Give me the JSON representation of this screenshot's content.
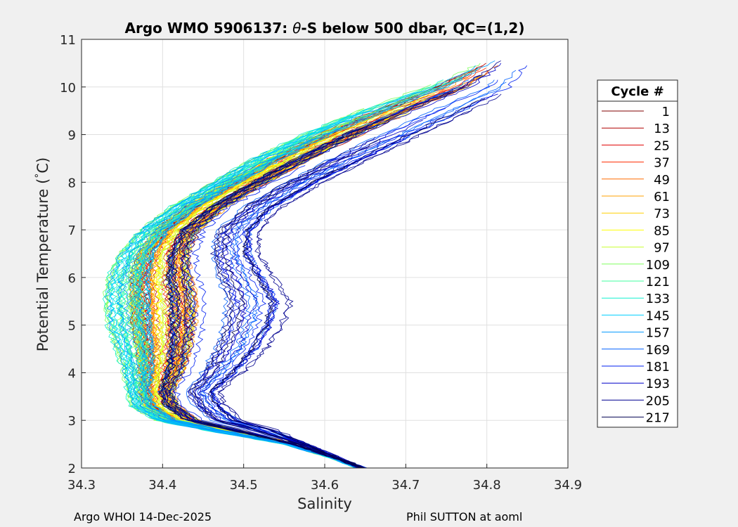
{
  "chart_data": {
    "type": "line",
    "title_parts": {
      "before_symbol": "Argo WMO 5906137: ",
      "symbol": "θ",
      "after_symbol": "-S below 500 dbar,  QC=(1,2)"
    },
    "xlabel": "Salinity",
    "ylabel_parts": {
      "main": "Potential Temperature (",
      "degree": "°",
      "unit": "C)"
    },
    "xlim": [
      34.3,
      34.9
    ],
    "ylim": [
      2,
      11
    ],
    "xticks": [
      "34.3",
      "34.4",
      "34.5",
      "34.6",
      "34.7",
      "34.8",
      "34.9"
    ],
    "yticks": [
      "2",
      "3",
      "4",
      "5",
      "6",
      "7",
      "8",
      "9",
      "10",
      "11"
    ],
    "grid": true,
    "legend": {
      "title": "Cycle #",
      "placement": "outside-right",
      "entries": [
        {
          "label": "1",
          "color": "#800000"
        },
        {
          "label": "13",
          "color": "#b00000"
        },
        {
          "label": "25",
          "color": "#e00000"
        },
        {
          "label": "37",
          "color": "#ff2a00"
        },
        {
          "label": "49",
          "color": "#ff6a00"
        },
        {
          "label": "61",
          "color": "#ffa000"
        },
        {
          "label": "73",
          "color": "#ffd000"
        },
        {
          "label": "85",
          "color": "#ffff00"
        },
        {
          "label": "97",
          "color": "#c8ff30"
        },
        {
          "label": "109",
          "color": "#80ff60"
        },
        {
          "label": "121",
          "color": "#40ffa0"
        },
        {
          "label": "133",
          "color": "#10f0d0"
        },
        {
          "label": "145",
          "color": "#00d0ff"
        },
        {
          "label": "157",
          "color": "#0098ff"
        },
        {
          "label": "169",
          "color": "#0060ff"
        },
        {
          "label": "181",
          "color": "#0020f0"
        },
        {
          "label": "193",
          "color": "#0000c8"
        },
        {
          "label": "205",
          "color": "#000090"
        },
        {
          "label": "217",
          "color": "#000050"
        }
      ]
    },
    "series_shape": {
      "description": "representative theta-S profile envelope",
      "theta": [
        2.0,
        2.2,
        2.5,
        2.8,
        3.0,
        3.3,
        3.6,
        4.0,
        4.5,
        5.0,
        5.5,
        6.0,
        6.5,
        7.0,
        7.5,
        8.0,
        8.5,
        9.0,
        9.5,
        10.0,
        10.6
      ],
      "salinity_min_edge": [
        34.64,
        34.61,
        34.55,
        34.45,
        34.39,
        34.36,
        34.355,
        34.35,
        34.34,
        34.33,
        34.325,
        34.33,
        34.345,
        34.37,
        34.41,
        34.46,
        34.51,
        34.57,
        34.64,
        34.72,
        34.8
      ],
      "salinity_max_edge": [
        34.65,
        34.62,
        34.58,
        34.54,
        34.5,
        34.48,
        34.47,
        34.5,
        34.53,
        34.55,
        34.56,
        34.54,
        34.52,
        34.52,
        34.55,
        34.6,
        34.66,
        34.72,
        34.78,
        34.84,
        34.86
      ]
    }
  },
  "footer": {
    "left": "Argo WHOI 14-Dec-2025",
    "right": "Phil SUTTON at aoml"
  }
}
